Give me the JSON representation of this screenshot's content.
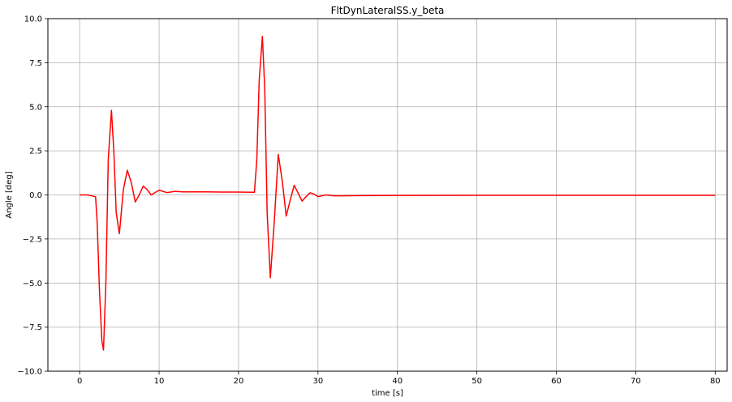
{
  "chart_data": {
    "type": "line",
    "title": "FltDynLateralSS.y_beta",
    "xlabel": "time [s]",
    "ylabel": "Angle [deg]",
    "xlim": [
      -4,
      81.5
    ],
    "ylim": [
      -10.0,
      10.0
    ],
    "x_ticks": [
      0,
      10,
      20,
      30,
      40,
      50,
      60,
      70,
      80
    ],
    "x_tick_labels": [
      "0",
      "10",
      "20",
      "30",
      "40",
      "50",
      "60",
      "70",
      "80"
    ],
    "y_ticks": [
      -10.0,
      -7.5,
      -5.0,
      -2.5,
      0.0,
      2.5,
      5.0,
      7.5,
      10.0
    ],
    "y_tick_labels": [
      "−10.0",
      "−7.5",
      "−5.0",
      "−2.5",
      "0.0",
      "2.5",
      "5.0",
      "7.5",
      "10.0"
    ],
    "grid": true,
    "line_color": "#ff0000",
    "series": [
      {
        "x": [
          0,
          1,
          2,
          2.2,
          2.5,
          2.8,
          3.0,
          3.3,
          3.6,
          4.0,
          4.3,
          4.6,
          5.0,
          5.5,
          6.0,
          6.5,
          7.0,
          7.5,
          8.0,
          8.5,
          9.0,
          10.0,
          11.0,
          12.0,
          13.0,
          14.0,
          16.0,
          18.0,
          20.0,
          22.0,
          22.3,
          22.6,
          23.0,
          23.3,
          23.6,
          24.0,
          24.5,
          25.0,
          25.5,
          26.0,
          26.5,
          27.0,
          27.5,
          28.0,
          28.5,
          29.0,
          29.5,
          30.0,
          31.0,
          32.0,
          33.0,
          35.0,
          40.0,
          50.0,
          60.0,
          70.0,
          80.0
        ],
        "y": [
          0.0,
          0.0,
          -0.1,
          -1.5,
          -5.5,
          -8.3,
          -8.8,
          -5.0,
          2.0,
          4.8,
          2.5,
          -1.0,
          -2.2,
          0.3,
          1.4,
          0.7,
          -0.4,
          0.0,
          0.5,
          0.3,
          0.0,
          0.27,
          0.13,
          0.2,
          0.17,
          0.18,
          0.17,
          0.16,
          0.16,
          0.15,
          2.0,
          6.5,
          9.0,
          6.0,
          -1.0,
          -4.7,
          -1.5,
          2.3,
          0.8,
          -1.2,
          -0.3,
          0.55,
          0.1,
          -0.35,
          -0.1,
          0.12,
          0.05,
          -0.1,
          0.0,
          -0.05,
          -0.05,
          -0.04,
          -0.03,
          -0.02,
          -0.02,
          -0.02,
          -0.02
        ]
      }
    ]
  }
}
